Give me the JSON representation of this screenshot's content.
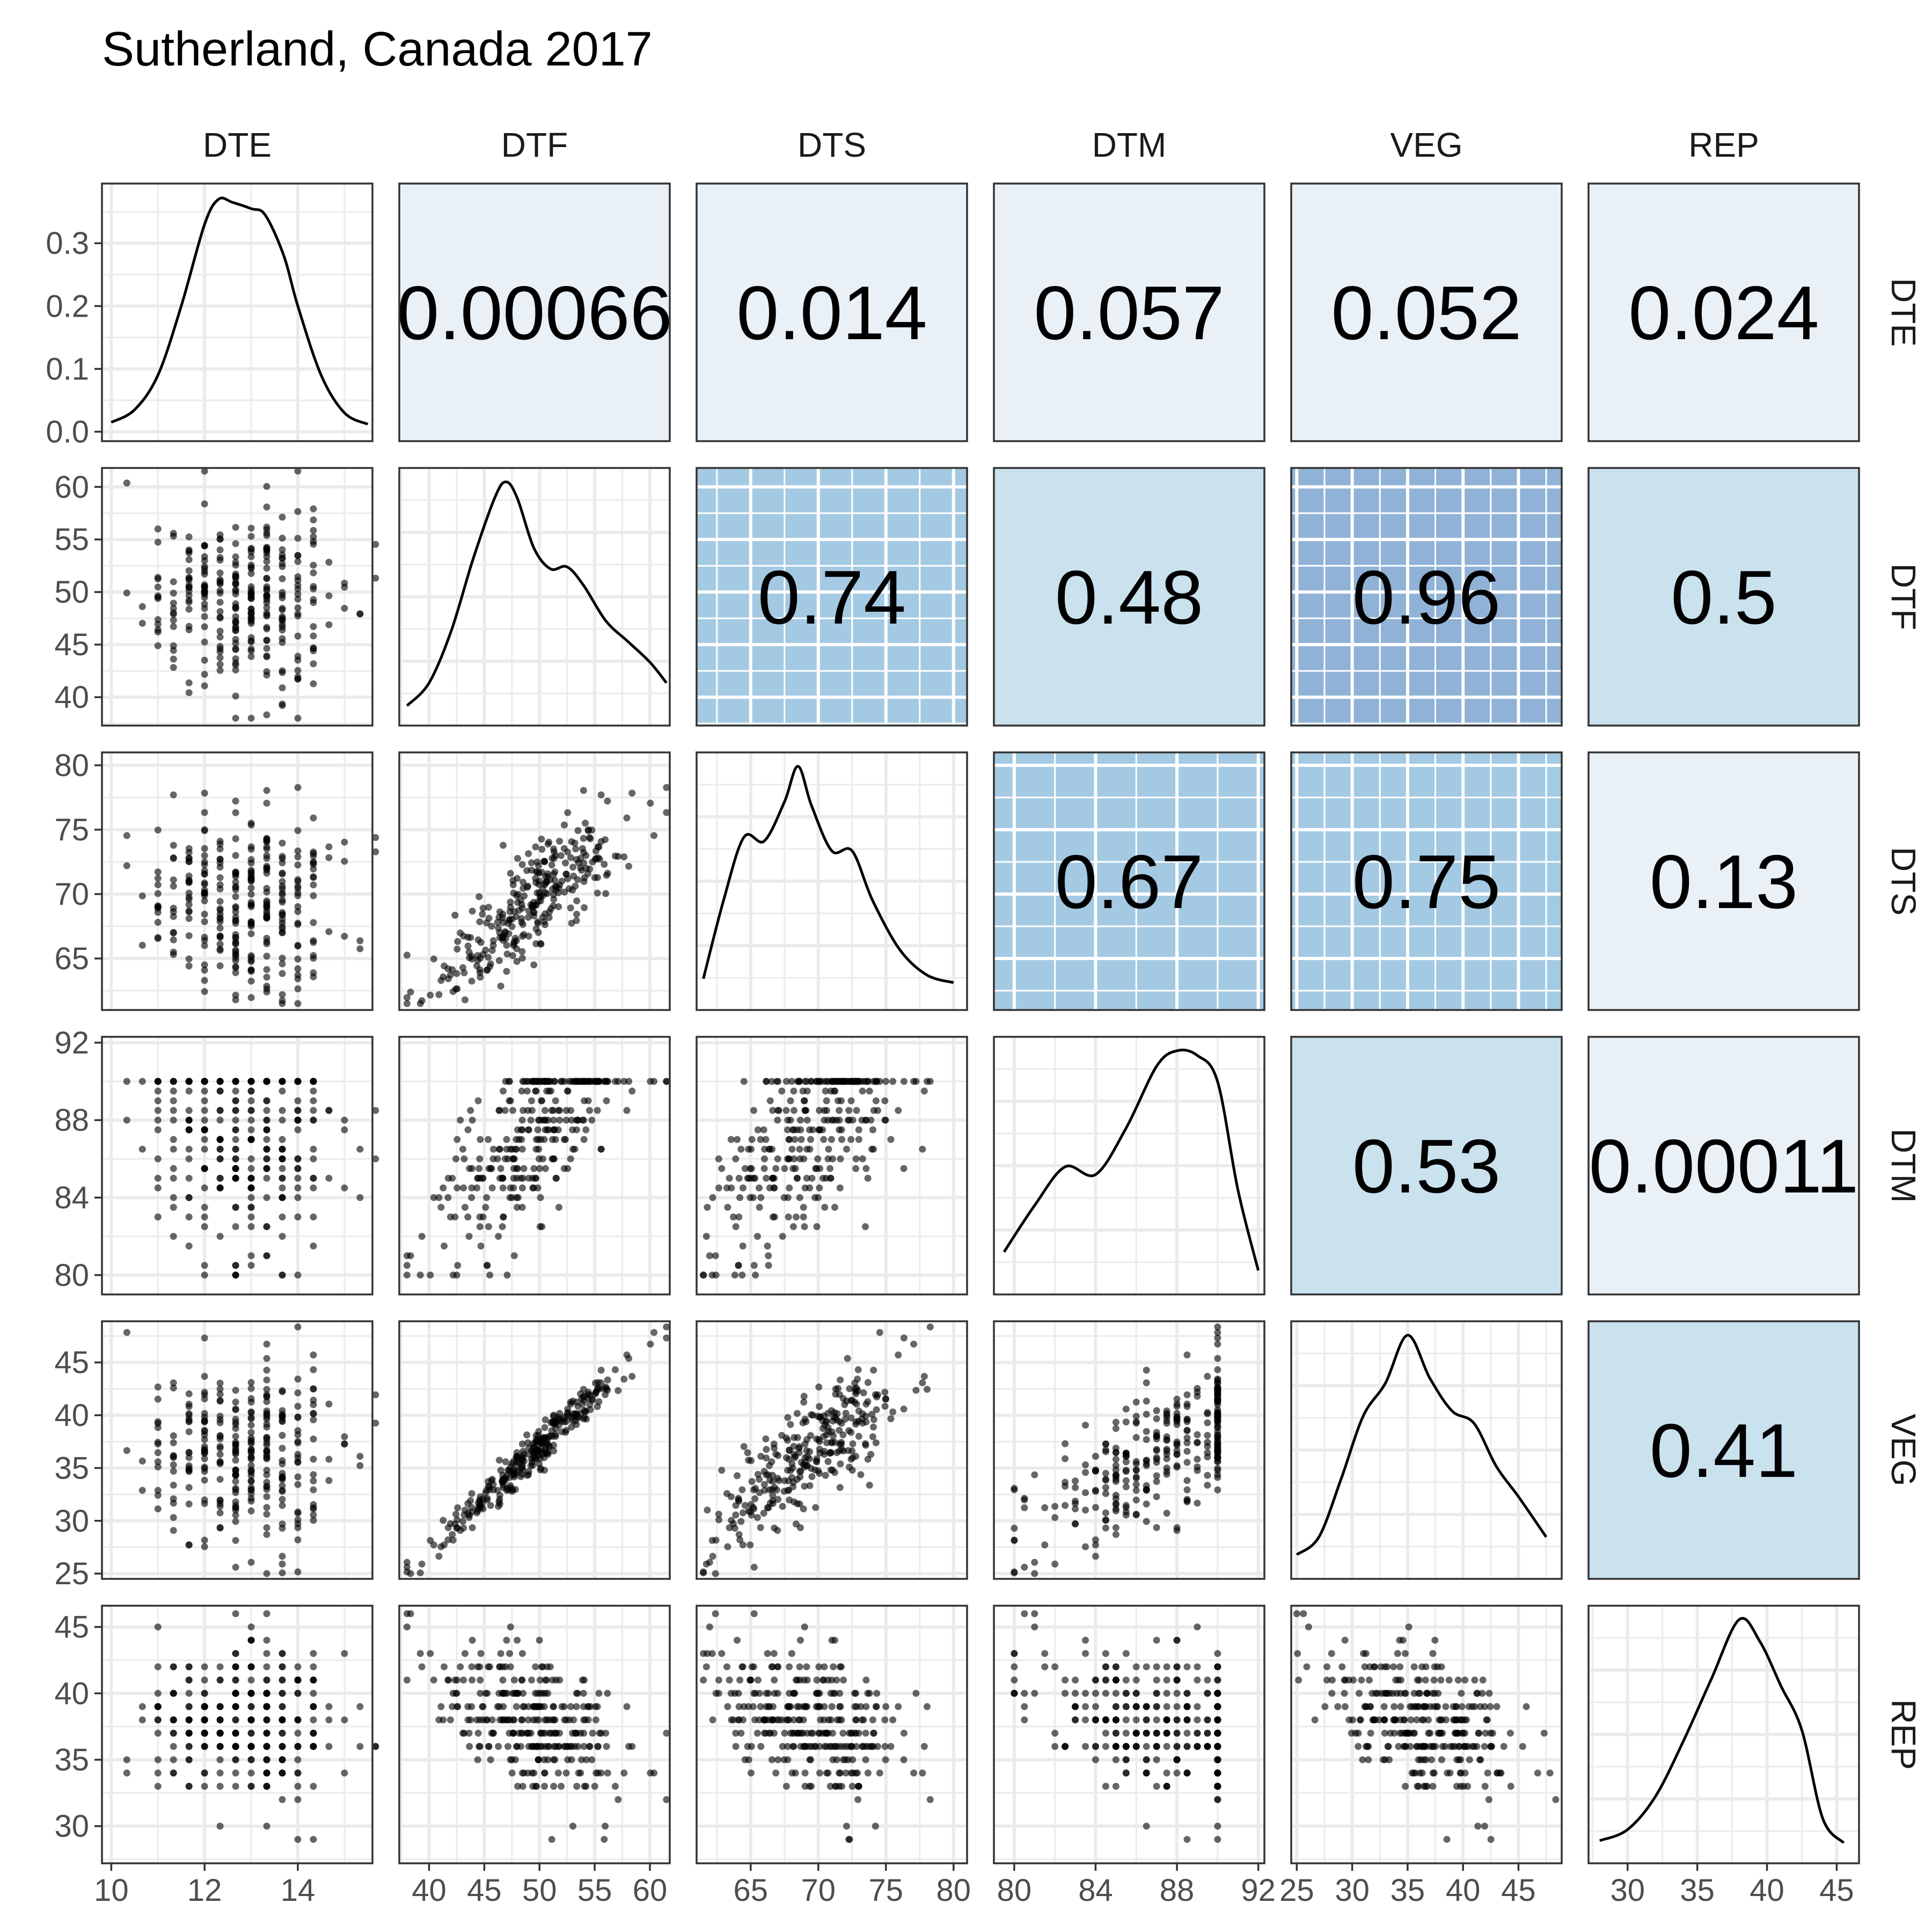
{
  "chart_data": {
    "type": "scatter-matrix",
    "title": "Sutherland, Canada 2017",
    "variables": [
      "DTE",
      "DTF",
      "DTS",
      "DTM",
      "VEG",
      "REP"
    ],
    "limits": {
      "DTE": [
        9.8,
        15.6
      ],
      "DTF": [
        37.3,
        61.8
      ],
      "DTS": [
        61.0,
        81.0
      ],
      "DTM": [
        79.0,
        92.3
      ],
      "VEG": [
        24.5,
        48.9
      ],
      "REP": [
        27.2,
        46.6
      ]
    },
    "ticks": {
      "DTE": [
        10,
        12,
        14
      ],
      "DTF": [
        40,
        45,
        50,
        55,
        60
      ],
      "DTS": [
        65,
        70,
        75,
        80
      ],
      "DTM": [
        80,
        84,
        88,
        92
      ],
      "VEG": [
        25,
        30,
        35,
        40,
        45
      ],
      "REP": [
        30,
        35,
        40,
        45
      ]
    },
    "density_ticks": [
      "0.0",
      "0.1",
      "0.2",
      "0.3"
    ],
    "density_ylim": [
      -0.015,
      0.395
    ],
    "correlations": [
      {
        "row": "DTE",
        "col": "DTF",
        "value": "0.00066",
        "fill": "#e9f1f7"
      },
      {
        "row": "DTE",
        "col": "DTS",
        "value": "0.014",
        "fill": "#e9f1f7"
      },
      {
        "row": "DTE",
        "col": "DTM",
        "value": "0.057",
        "fill": "#e9f1f7"
      },
      {
        "row": "DTE",
        "col": "VEG",
        "value": "0.052",
        "fill": "#e9f1f7"
      },
      {
        "row": "DTE",
        "col": "REP",
        "value": "0.024",
        "fill": "#e9f1f7"
      },
      {
        "row": "DTF",
        "col": "DTS",
        "value": "0.74",
        "fill": "#a4c9e2"
      },
      {
        "row": "DTF",
        "col": "DTM",
        "value": "0.48",
        "fill": "#cae1ee"
      },
      {
        "row": "DTF",
        "col": "VEG",
        "value": "0.96",
        "fill": "#90b2d6"
      },
      {
        "row": "DTF",
        "col": "REP",
        "value": "0.5",
        "fill": "#cae1ee"
      },
      {
        "row": "DTS",
        "col": "DTM",
        "value": "0.67",
        "fill": "#a4c9e2"
      },
      {
        "row": "DTS",
        "col": "VEG",
        "value": "0.75",
        "fill": "#a4c9e2"
      },
      {
        "row": "DTS",
        "col": "REP",
        "value": "0.13",
        "fill": "#e9f1f7"
      },
      {
        "row": "DTM",
        "col": "VEG",
        "value": "0.53",
        "fill": "#cae1ee"
      },
      {
        "row": "DTM",
        "col": "REP",
        "value": "0.00011",
        "fill": "#e9f1f7"
      },
      {
        "row": "VEG",
        "col": "REP",
        "value": "0.41",
        "fill": "#cae1ee"
      }
    ],
    "densities": {
      "DTE": [
        [
          10.0,
          0.015
        ],
        [
          10.5,
          0.035
        ],
        [
          11.0,
          0.09
        ],
        [
          11.5,
          0.2
        ],
        [
          12.0,
          0.33
        ],
        [
          12.3,
          0.37
        ],
        [
          12.6,
          0.365
        ],
        [
          13.0,
          0.355
        ],
        [
          13.3,
          0.345
        ],
        [
          13.7,
          0.28
        ],
        [
          14.0,
          0.2
        ],
        [
          14.5,
          0.09
        ],
        [
          15.0,
          0.03
        ],
        [
          15.5,
          0.012
        ]
      ],
      "DTF": [
        [
          38.0,
          0.004
        ],
        [
          40.0,
          0.015
        ],
        [
          42.0,
          0.04
        ],
        [
          44.0,
          0.075
        ],
        [
          46.0,
          0.105
        ],
        [
          47.0,
          0.112
        ],
        [
          48.0,
          0.104
        ],
        [
          49.5,
          0.08
        ],
        [
          51.0,
          0.07
        ],
        [
          52.5,
          0.071
        ],
        [
          54.0,
          0.062
        ],
        [
          56.0,
          0.045
        ],
        [
          58.0,
          0.035
        ],
        [
          60.0,
          0.025
        ],
        [
          61.5,
          0.015
        ]
      ],
      "DTS": [
        [
          61.5,
          0.01
        ],
        [
          63.0,
          0.05
        ],
        [
          64.5,
          0.082
        ],
        [
          66.0,
          0.08
        ],
        [
          67.5,
          0.1
        ],
        [
          68.5,
          0.118
        ],
        [
          69.5,
          0.098
        ],
        [
          71.0,
          0.075
        ],
        [
          72.5,
          0.075
        ],
        [
          74.0,
          0.05
        ],
        [
          76.0,
          0.025
        ],
        [
          78.0,
          0.012
        ],
        [
          80.0,
          0.008
        ]
      ],
      "DTM": [
        [
          79.5,
          0.02
        ],
        [
          81.0,
          0.05
        ],
        [
          82.5,
          0.075
        ],
        [
          84.0,
          0.07
        ],
        [
          85.5,
          0.1
        ],
        [
          87.0,
          0.14
        ],
        [
          88.0,
          0.15
        ],
        [
          89.0,
          0.147
        ],
        [
          90.0,
          0.13
        ],
        [
          91.0,
          0.06
        ],
        [
          92.0,
          0.008
        ]
      ],
      "VEG": [
        [
          25.0,
          0.005
        ],
        [
          27.0,
          0.012
        ],
        [
          29.0,
          0.035
        ],
        [
          31.0,
          0.06
        ],
        [
          33.0,
          0.073
        ],
        [
          35.0,
          0.092
        ],
        [
          37.0,
          0.075
        ],
        [
          39.0,
          0.062
        ],
        [
          41.0,
          0.057
        ],
        [
          43.0,
          0.04
        ],
        [
          45.0,
          0.028
        ],
        [
          47.5,
          0.012
        ]
      ],
      "REP": [
        [
          28.0,
          0.005
        ],
        [
          30.0,
          0.01
        ],
        [
          32.0,
          0.025
        ],
        [
          34.0,
          0.05
        ],
        [
          36.0,
          0.078
        ],
        [
          38.0,
          0.105
        ],
        [
          39.5,
          0.095
        ],
        [
          41.0,
          0.075
        ],
        [
          42.5,
          0.055
        ],
        [
          44.0,
          0.015
        ],
        [
          45.5,
          0.004
        ]
      ]
    }
  }
}
